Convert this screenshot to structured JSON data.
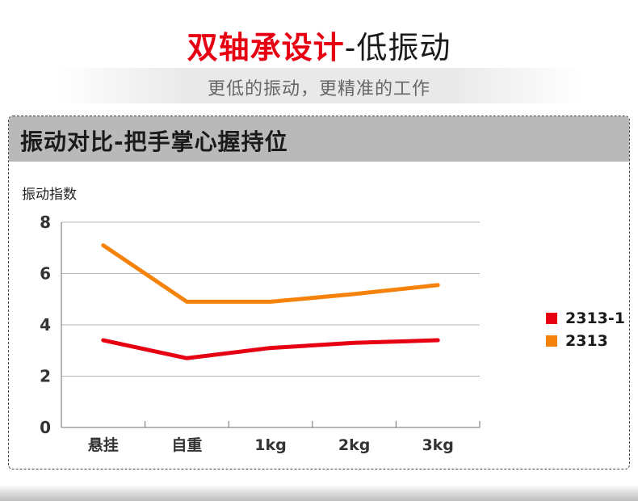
{
  "header": {
    "title_red": "双轴承设计",
    "title_rest": "-低振动",
    "subtitle": "更低的振动，更精准的工作"
  },
  "panel": {
    "title": "振动对比-把手掌心握持位"
  },
  "colors": {
    "accent_red": "#e60012",
    "accent_orange": "#f5820a",
    "header_gray": "#b9b9b9"
  },
  "chart_data": {
    "type": "line",
    "ylabel": "振动指数",
    "xlabel": "",
    "categories": [
      "悬挂",
      "自重",
      "1kg",
      "2kg",
      "3kg"
    ],
    "y_ticks": [
      "0",
      "2",
      "4",
      "6",
      "8"
    ],
    "ylim": [
      0,
      8
    ],
    "grid": true,
    "legend_position": "right",
    "series": [
      {
        "name": "2313-1",
        "color": "#e60012",
        "values": [
          3.4,
          2.7,
          3.1,
          3.3,
          3.4
        ]
      },
      {
        "name": "2313",
        "color": "#f5820a",
        "values": [
          7.1,
          4.9,
          4.9,
          5.2,
          5.55
        ]
      }
    ]
  }
}
